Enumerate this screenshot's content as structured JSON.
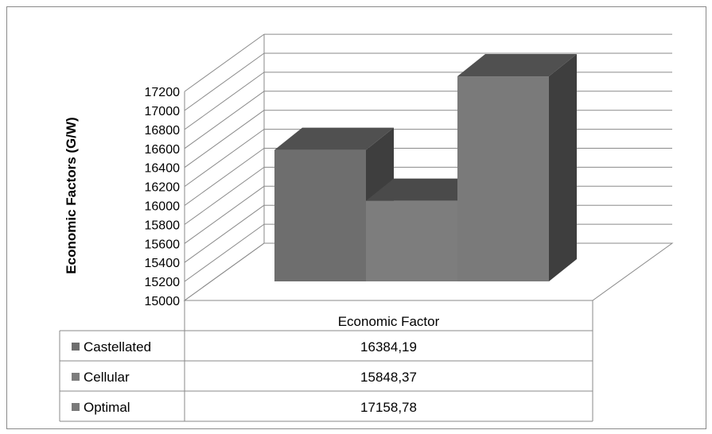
{
  "chart_data": {
    "type": "bar",
    "title": "",
    "ylabel": "Economic Factors (G/W)",
    "xlabel": "",
    "category": "Economic Factor",
    "ylim": [
      15000,
      17200
    ],
    "yticks": [
      15000,
      15200,
      15400,
      15600,
      15800,
      16000,
      16200,
      16400,
      16600,
      16800,
      17000,
      17200
    ],
    "grid": true,
    "legend_position": "table-left",
    "series": [
      {
        "name": "Castellated",
        "value": 16384.19,
        "label": "16384,19",
        "color": "#6e6e6e"
      },
      {
        "name": "Cellular",
        "value": 15848.37,
        "label": "15848,37",
        "color": "#7d7d7d"
      },
      {
        "name": "Optimal",
        "value": 17158.78,
        "label": "17158,78",
        "color": "#7a7a7a"
      }
    ]
  }
}
